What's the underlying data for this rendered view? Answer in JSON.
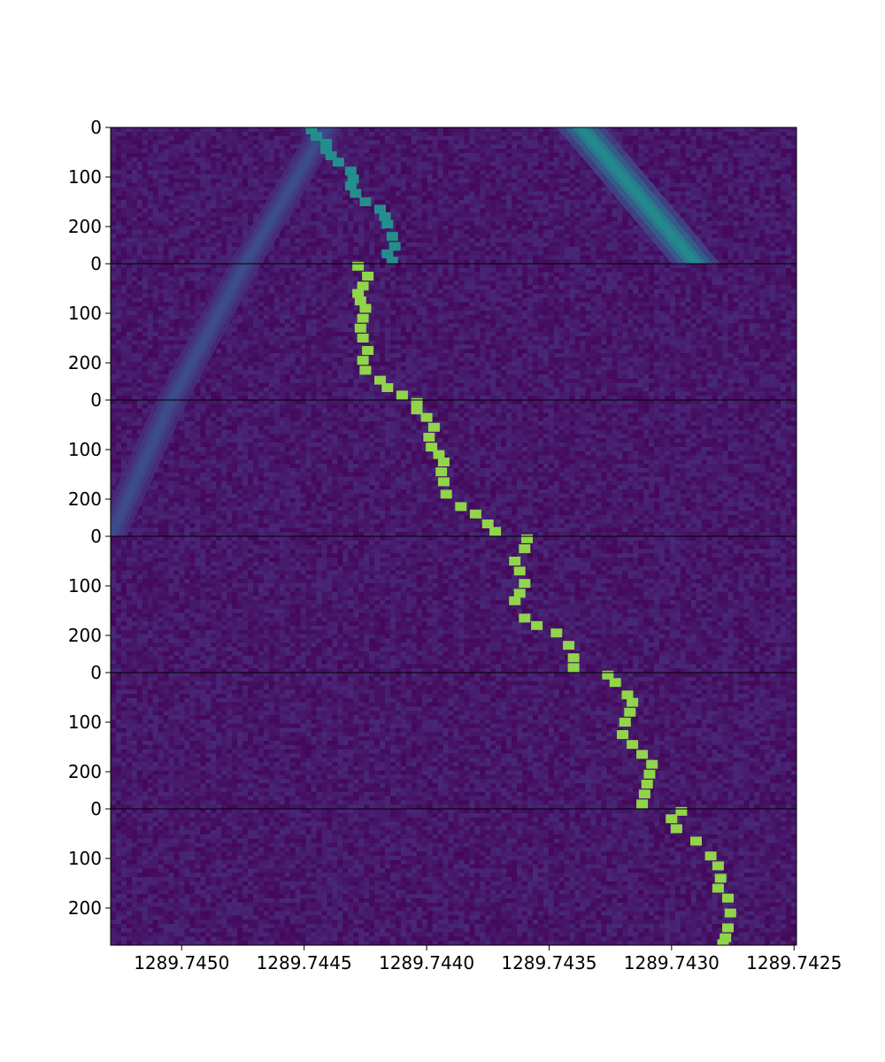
{
  "chart_data": {
    "type": "heatmap",
    "title": "",
    "xlabel": "",
    "ylabel": "",
    "colormap": "viridis",
    "xlim": [
      1289.74529,
      1289.74249
    ],
    "x_ticks": [
      1289.745,
      1289.7445,
      1289.744,
      1289.7435,
      1289.743,
      1289.7425
    ],
    "x_tick_labels": [
      "1289.7450",
      "1289.7445",
      "1289.7440",
      "1289.7435",
      "1289.7430",
      "1289.7425"
    ],
    "y_ticks": [
      0,
      100,
      200
    ],
    "y_tick_labels": [
      "0",
      "100",
      "200"
    ],
    "panel_row_range": [
      0,
      275
    ],
    "panels": [
      {
        "track": [
          [
            1289.74447,
            5
          ],
          [
            1289.74445,
            18
          ],
          [
            1289.74441,
            32
          ],
          [
            1289.74441,
            45
          ],
          [
            1289.74439,
            57
          ],
          [
            1289.74436,
            70
          ],
          [
            1289.74431,
            88
          ],
          [
            1289.7443,
            104
          ],
          [
            1289.74431,
            118
          ],
          [
            1289.74429,
            133
          ],
          [
            1289.74425,
            150
          ],
          [
            1289.74419,
            165
          ],
          [
            1289.74417,
            180
          ],
          [
            1289.74416,
            195
          ],
          [
            1289.74414,
            220
          ],
          [
            1289.74413,
            240
          ],
          [
            1289.74416,
            255
          ],
          [
            1289.74414,
            270
          ]
        ],
        "track_level": 0.62,
        "features": [
          {
            "path": [
              [
                1289.74441,
                0
              ],
              [
                1289.74474,
                275
              ]
            ],
            "half_width": 3e-05,
            "level": 0.3
          },
          {
            "path": [
              [
                1289.74337,
                0
              ],
              [
                1289.7429,
                275
              ]
            ],
            "half_width": 4.5e-05,
            "level": 0.62
          }
        ]
      },
      {
        "track": [
          [
            1289.74428,
            5
          ],
          [
            1289.74424,
            25
          ],
          [
            1289.74426,
            45
          ],
          [
            1289.74428,
            60
          ],
          [
            1289.74427,
            75
          ],
          [
            1289.74425,
            90
          ],
          [
            1289.74426,
            110
          ],
          [
            1289.74427,
            130
          ],
          [
            1289.74426,
            150
          ],
          [
            1289.74424,
            175
          ],
          [
            1289.74426,
            195
          ],
          [
            1289.74425,
            215
          ],
          [
            1289.74419,
            235
          ],
          [
            1289.74416,
            250
          ],
          [
            1289.7441,
            265
          ]
        ],
        "track_level": 0.9,
        "features": [
          {
            "path": [
              [
                1289.74474,
                0
              ],
              [
                1289.74504,
                275
              ]
            ],
            "half_width": 3e-05,
            "level": 0.3
          }
        ]
      },
      {
        "track": [
          [
            1289.74404,
            5
          ],
          [
            1289.74404,
            20
          ],
          [
            1289.744,
            35
          ],
          [
            1289.74397,
            55
          ],
          [
            1289.74399,
            75
          ],
          [
            1289.74398,
            95
          ],
          [
            1289.74395,
            110
          ],
          [
            1289.74393,
            125
          ],
          [
            1289.74394,
            145
          ],
          [
            1289.74393,
            165
          ],
          [
            1289.74392,
            190
          ],
          [
            1289.74386,
            215
          ],
          [
            1289.7438,
            230
          ],
          [
            1289.74375,
            250
          ],
          [
            1289.74372,
            265
          ]
        ],
        "track_level": 0.9,
        "features": [
          {
            "path": [
              [
                1289.74504,
                0
              ],
              [
                1289.74529,
                275
              ]
            ],
            "half_width": 3e-05,
            "level": 0.3
          }
        ]
      },
      {
        "track": [
          [
            1289.74359,
            5
          ],
          [
            1289.7436,
            25
          ],
          [
            1289.74364,
            50
          ],
          [
            1289.74362,
            70
          ],
          [
            1289.7436,
            95
          ],
          [
            1289.74362,
            115
          ],
          [
            1289.74364,
            130
          ],
          [
            1289.7436,
            165
          ],
          [
            1289.74355,
            180
          ],
          [
            1289.74347,
            195
          ],
          [
            1289.74342,
            220
          ],
          [
            1289.7434,
            245
          ],
          [
            1289.7434,
            265
          ]
        ],
        "track_level": 0.9,
        "features": []
      },
      {
        "track": [
          [
            1289.74326,
            5
          ],
          [
            1289.74323,
            20
          ],
          [
            1289.74318,
            45
          ],
          [
            1289.74316,
            60
          ],
          [
            1289.74317,
            80
          ],
          [
            1289.74319,
            100
          ],
          [
            1289.7432,
            125
          ],
          [
            1289.74316,
            145
          ],
          [
            1289.74312,
            165
          ],
          [
            1289.74308,
            185
          ],
          [
            1289.74309,
            205
          ],
          [
            1289.7431,
            225
          ],
          [
            1289.74311,
            245
          ],
          [
            1289.74312,
            265
          ]
        ],
        "track_level": 0.9,
        "features": []
      },
      {
        "track": [
          [
            1289.74296,
            5
          ],
          [
            1289.743,
            20
          ],
          [
            1289.74298,
            40
          ],
          [
            1289.7429,
            65
          ],
          [
            1289.74284,
            95
          ],
          [
            1289.74281,
            115
          ],
          [
            1289.7428,
            140
          ],
          [
            1289.74281,
            160
          ],
          [
            1289.74277,
            180
          ],
          [
            1289.74276,
            210
          ],
          [
            1289.74277,
            240
          ],
          [
            1289.74278,
            260
          ],
          [
            1289.74279,
            272
          ]
        ],
        "track_level": 0.9,
        "features": []
      }
    ]
  }
}
